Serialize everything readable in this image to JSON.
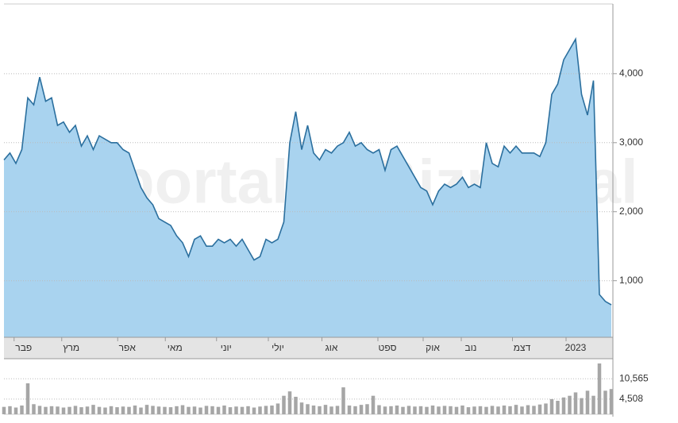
{
  "chart_data": [
    {
      "type": "area",
      "watermark": "Bizportal",
      "color": "#a9d3ef",
      "line_color": "#2b6f9e",
      "values": [
        2750,
        2850,
        2700,
        2900,
        3650,
        3550,
        3950,
        3600,
        3650,
        3250,
        3300,
        3150,
        3250,
        2950,
        3100,
        2900,
        3100,
        3050,
        3000,
        3000,
        2900,
        2850,
        2600,
        2350,
        2200,
        2100,
        1900,
        1850,
        1800,
        1650,
        1550,
        1350,
        1600,
        1650,
        1500,
        1500,
        1600,
        1550,
        1600,
        1500,
        1600,
        1450,
        1300,
        1350,
        1600,
        1550,
        1600,
        1850,
        3000,
        3450,
        2900,
        3250,
        2850,
        2750,
        2900,
        2850,
        2950,
        3000,
        3150,
        2950,
        3000,
        2900,
        2850,
        2900,
        2600,
        2900,
        2950,
        2800,
        2650,
        2500,
        2350,
        2300,
        2100,
        2300,
        2400,
        2350,
        2400,
        2500,
        2350,
        2400,
        2350,
        3000,
        2700,
        2650,
        2950,
        2850,
        2950,
        2850,
        2850,
        2850,
        2800,
        3000,
        3700,
        3850,
        4200,
        4350,
        4500,
        3700,
        3400,
        3900,
        800,
        700,
        650
      ],
      "ylim": [
        180,
        5010
      ],
      "yticks": [
        {
          "value": 1000,
          "label": "1,000"
        },
        {
          "value": 2000,
          "label": "2,000"
        },
        {
          "value": 3000,
          "label": "3,000"
        },
        {
          "value": 4000,
          "label": "4,000"
        }
      ],
      "xticks": [
        {
          "value": 3.3,
          "label": "פבר"
        },
        {
          "value": 11.3,
          "label": "מרץ"
        },
        {
          "value": 20.7,
          "label": "אפר"
        },
        {
          "value": 28.7,
          "label": "מאי"
        },
        {
          "value": 37.3,
          "label": "יוני"
        },
        {
          "value": 46,
          "label": "יולי"
        },
        {
          "value": 55,
          "label": "אוג"
        },
        {
          "value": 64.4,
          "label": "ספט"
        },
        {
          "value": 72,
          "label": "אוק"
        },
        {
          "value": 78.4,
          "label": "נוב"
        },
        {
          "value": 87,
          "label": "דצמ"
        },
        {
          "value": 96,
          "label": "2023"
        }
      ],
      "grid": true
    },
    {
      "type": "bar",
      "color": "#a6a6a6",
      "values": [
        2200,
        2400,
        2000,
        2600,
        9200,
        3000,
        2500,
        2200,
        2400,
        2300,
        2000,
        2200,
        2500,
        2100,
        2300,
        2800,
        2200,
        2000,
        2400,
        2100,
        2300,
        2200,
        2600,
        2000,
        2800,
        2500,
        2300,
        2200,
        2100,
        2400,
        2700,
        2200,
        2300,
        2000,
        2500,
        2400,
        2200,
        2600,
        2100,
        2300,
        2200,
        2400,
        2000,
        2300,
        2500,
        2600,
        3200,
        5500,
        6800,
        5200,
        3500,
        3000,
        2600,
        2400,
        2800,
        2300,
        2500,
        8000,
        2600,
        2400,
        2800,
        3000,
        5500,
        2700,
        2300,
        2400,
        2600,
        2200,
        2500,
        2300,
        2400,
        2200,
        2600,
        2300,
        2500,
        2400,
        2200,
        2600,
        2100,
        2300,
        2400,
        2200,
        2500,
        2300,
        2600,
        2400,
        2800,
        2300,
        2700,
        2500,
        2900,
        3200,
        4500,
        4000,
        5000,
        5500,
        6500,
        4800,
        7000,
        5500,
        15100,
        7000,
        7500
      ],
      "ylim": [
        0,
        15800
      ],
      "yticks": [
        {
          "value": 4508,
          "label": "4,508"
        },
        {
          "value": 10565,
          "label": "10,565"
        }
      ],
      "grid": true
    }
  ]
}
